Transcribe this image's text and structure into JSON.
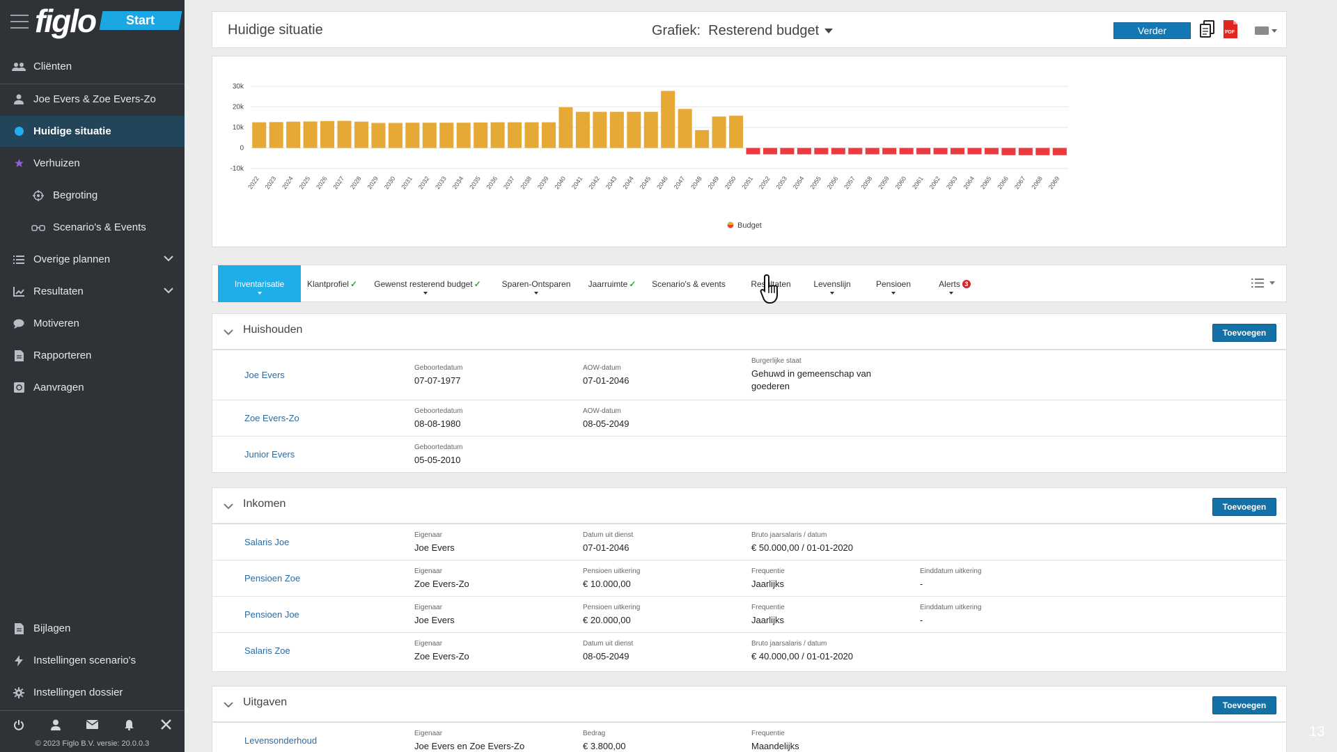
{
  "sidebar": {
    "logo": "figlo",
    "start": "Start",
    "items": [
      {
        "label": "Cliënten",
        "icon": "users-icon"
      },
      {
        "label": "Joe Evers & Zoe Evers-Zo",
        "icon": "user-icon"
      },
      {
        "label": "Huidige situatie",
        "icon": "dot-icon"
      },
      {
        "label": "Verhuizen",
        "icon": "star-icon"
      },
      {
        "label": "Begroting",
        "icon": "target-icon"
      },
      {
        "label": "Scenario's & Events",
        "icon": "glasses-icon"
      },
      {
        "label": "Overige plannen",
        "icon": "list-icon"
      },
      {
        "label": "Resultaten",
        "icon": "chart-icon"
      },
      {
        "label": "Motiveren",
        "icon": "chat-icon"
      },
      {
        "label": "Rapporteren",
        "icon": "document-icon"
      },
      {
        "label": "Aanvragen",
        "icon": "safe-icon"
      }
    ],
    "bottom_items": [
      {
        "label": "Bijlagen",
        "icon": "attachment-icon"
      },
      {
        "label": "Instellingen scenario's",
        "icon": "bolt-icon"
      },
      {
        "label": "Instellingen dossier",
        "icon": "gear-icon"
      }
    ],
    "version": "© 2023 Figlo B.V. versie: 20.0.0.3"
  },
  "header": {
    "title": "Huidige situatie",
    "graph_select": "Grafiek:  Resterend budget",
    "next_button": "Verder"
  },
  "chart_data": {
    "type": "bar",
    "title": "",
    "xlabel": "",
    "ylabel": "",
    "ylim": [
      -10000,
      30000
    ],
    "yticks": [
      30000,
      20000,
      10000,
      0,
      -10000
    ],
    "ytick_labels": [
      "30k",
      "20k",
      "10k",
      "0",
      "-10k"
    ],
    "categories": [
      "2022",
      "2023",
      "2024",
      "2025",
      "2026",
      "2027",
      "2028",
      "2029",
      "2030",
      "2031",
      "2032",
      "2033",
      "2034",
      "2035",
      "2036",
      "2037",
      "2038",
      "2039",
      "2040",
      "2041",
      "2042",
      "2043",
      "2044",
      "2045",
      "2046",
      "2047",
      "2048",
      "2049",
      "2050",
      "2051",
      "2052",
      "2053",
      "2054",
      "2055",
      "2056",
      "2057",
      "2058",
      "2059",
      "2060",
      "2061",
      "2062",
      "2063",
      "2064",
      "2065",
      "2066",
      "2067",
      "2068",
      "2069"
    ],
    "series": [
      {
        "name": "Budget",
        "values": [
          12500,
          12600,
          12800,
          12900,
          13100,
          13200,
          12800,
          12200,
          12200,
          12300,
          12300,
          12300,
          12300,
          12400,
          12500,
          12500,
          12500,
          12500,
          19800,
          17600,
          17600,
          17600,
          17600,
          17600,
          27800,
          19000,
          8700,
          15300,
          15700,
          -3100,
          -3100,
          -3100,
          -3100,
          -3100,
          -3100,
          -3100,
          -3100,
          -3100,
          -3100,
          -3100,
          -3100,
          -3100,
          -3100,
          -3100,
          -3500,
          -3500,
          -3500,
          -3500
        ]
      }
    ],
    "colors": {
      "positive": "#e7a935",
      "negative": "#ec3a3f"
    },
    "legend": "bottom-center",
    "grid": true
  },
  "tabs": [
    {
      "label": "Inventarisatie",
      "check": "",
      "caret": true
    },
    {
      "label": "Klantprofiel",
      "check": "✓",
      "caret": false
    },
    {
      "label": "Gewenst resterend budget",
      "check": "✓",
      "caret": true
    },
    {
      "label": "Sparen-Ontsparen",
      "check": "",
      "caret": true
    },
    {
      "label": "Jaarruimte",
      "check": "✓",
      "caret": false
    },
    {
      "label": "Scenario's & events",
      "check": "",
      "caret": false
    },
    {
      "label": "Resultaten",
      "check": "",
      "caret": false
    },
    {
      "label": "Levenslijn",
      "check": "",
      "caret": true
    },
    {
      "label": "Pensioen",
      "check": "",
      "caret": true
    },
    {
      "label": "Alerts",
      "check": "",
      "caret": true,
      "badge": "3"
    }
  ],
  "add_label": "Toevoegen",
  "sections": [
    {
      "title": "Huishouden",
      "rows": [
        {
          "name": "Joe Evers",
          "fields": [
            {
              "label": "Geboortedatum",
              "value": "07-07-1977"
            },
            {
              "label": "AOW-datum",
              "value": "07-01-2046"
            },
            {
              "label": "Burgerlijke staat",
              "value": "Gehuwd in gemeenschap van goederen"
            }
          ]
        },
        {
          "name": "Zoe Evers-Zo",
          "fields": [
            {
              "label": "Geboortedatum",
              "value": "08-08-1980"
            },
            {
              "label": "AOW-datum",
              "value": "08-05-2049"
            }
          ]
        },
        {
          "name": "Junior Evers",
          "fields": [
            {
              "label": "Geboortedatum",
              "value": "05-05-2010"
            }
          ]
        }
      ]
    },
    {
      "title": "Inkomen",
      "rows": [
        {
          "name": "Salaris Joe",
          "fields": [
            {
              "label": "Eigenaar",
              "value": "Joe Evers"
            },
            {
              "label": "Datum uit dienst",
              "value": "07-01-2046"
            },
            {
              "label": "Bruto jaarsalaris / datum",
              "value": "€ 50.000,00 / 01-01-2020"
            }
          ]
        },
        {
          "name": "Pensioen Zoe",
          "fields": [
            {
              "label": "Eigenaar",
              "value": "Zoe Evers-Zo"
            },
            {
              "label": "Pensioen uitkering",
              "value": "€ 10.000,00"
            },
            {
              "label": "Frequentie",
              "value": "Jaarlijks"
            },
            {
              "label": "Einddatum uitkering",
              "value": "-"
            }
          ]
        },
        {
          "name": "Pensioen Joe",
          "fields": [
            {
              "label": "Eigenaar",
              "value": "Joe Evers"
            },
            {
              "label": "Pensioen uitkering",
              "value": "€ 20.000,00"
            },
            {
              "label": "Frequentie",
              "value": "Jaarlijks"
            },
            {
              "label": "Einddatum uitkering",
              "value": "-"
            }
          ]
        },
        {
          "name": "Salaris Zoe",
          "fields": [
            {
              "label": "Eigenaar",
              "value": "Zoe Evers-Zo"
            },
            {
              "label": "Datum uit dienst",
              "value": "08-05-2049"
            },
            {
              "label": "Bruto jaarsalaris / datum",
              "value": "€ 40.000,00 / 01-01-2020"
            }
          ]
        }
      ]
    },
    {
      "title": "Uitgaven",
      "rows": [
        {
          "name": "Levensonderhoud",
          "fields": [
            {
              "label": "Eigenaar",
              "value": "Joe Evers en Zoe Evers-Zo"
            },
            {
              "label": "Bedrag",
              "value": "€ 3.800,00"
            },
            {
              "label": "Frequentie",
              "value": "Maandelijks"
            }
          ]
        }
      ]
    }
  ],
  "page_number": "13"
}
